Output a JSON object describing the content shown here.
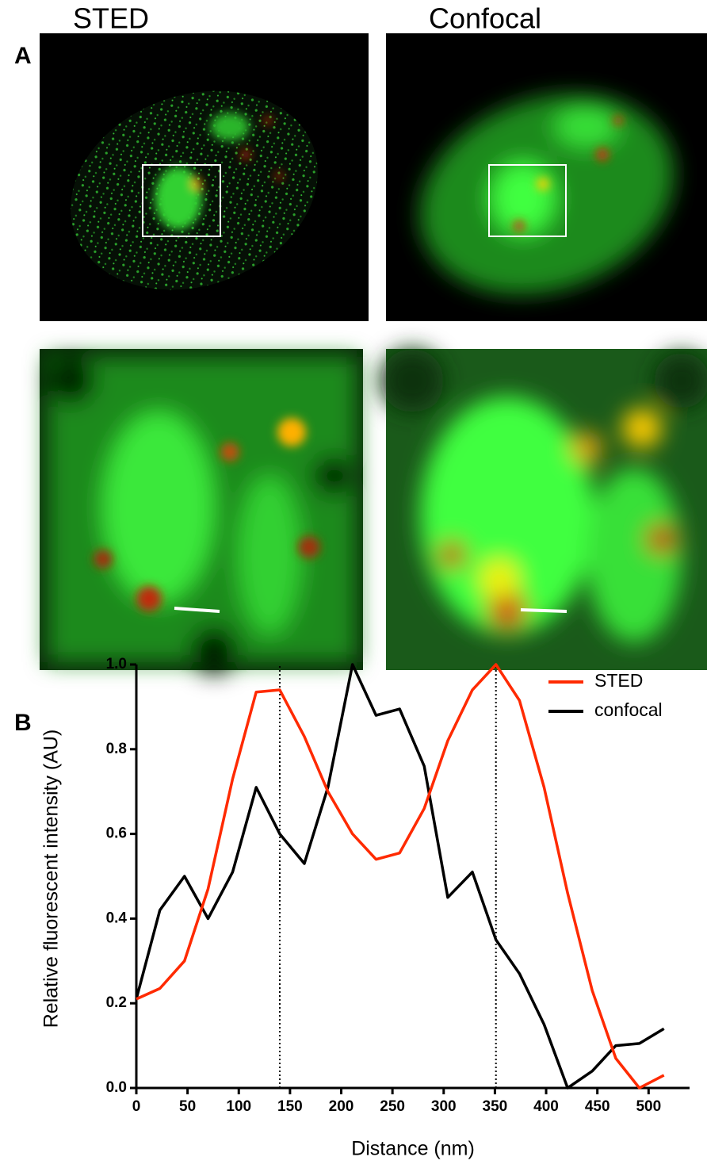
{
  "panel_labels": [
    "A",
    "B"
  ],
  "image_titles": [
    "STED",
    "Confocal"
  ],
  "chart_data": {
    "type": "line",
    "xlabel": "Distance (nm)",
    "ylabel": "Relative fluorescent intensity (AU)",
    "x": [
      0,
      23,
      47,
      70,
      94,
      117,
      140,
      164,
      187,
      211,
      234,
      257,
      281,
      304,
      328,
      351,
      374,
      398,
      421,
      445,
      468,
      491,
      515
    ],
    "series": [
      {
        "name": "STED",
        "color": "#ff2a00",
        "values": [
          0.21,
          0.235,
          0.3,
          0.47,
          0.73,
          0.935,
          0.94,
          0.83,
          0.7,
          0.6,
          0.54,
          0.555,
          0.66,
          0.82,
          0.94,
          1.0,
          0.915,
          0.71,
          0.46,
          0.23,
          0.07,
          0.0,
          0.03
        ]
      },
      {
        "name": "confocal",
        "color": "#000000",
        "values": [
          0.21,
          0.42,
          0.5,
          0.4,
          0.51,
          0.71,
          0.6,
          0.53,
          0.71,
          1.0,
          0.88,
          0.895,
          0.76,
          0.45,
          0.51,
          0.35,
          0.27,
          0.15,
          0.0,
          0.04,
          0.1,
          0.105,
          0.14
        ]
      }
    ],
    "xlim": [
      0,
      540
    ],
    "xticks": [
      0,
      50,
      100,
      150,
      200,
      250,
      300,
      350,
      400,
      450,
      500
    ],
    "ylim": [
      0,
      1.0
    ],
    "yticks": [
      {
        "value": 0,
        "label": "0.0"
      },
      0.2,
      0.4,
      0.6,
      0.8,
      {
        "value": 1.0,
        "label": "1.0"
      }
    ],
    "vlines": [
      140,
      351
    ],
    "legend": "upper right"
  }
}
